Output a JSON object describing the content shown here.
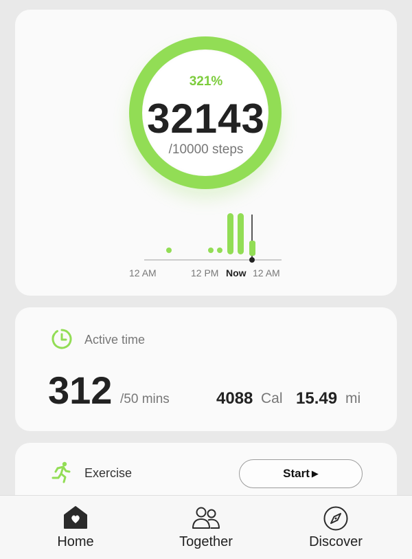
{
  "steps_card": {
    "percent": "321%",
    "steps": "32143",
    "goal": "/10000 steps",
    "chart": {
      "tick_labels": [
        "12 AM",
        "12 PM",
        "Now",
        "12 AM"
      ],
      "accent_color": "#92dd55"
    }
  },
  "active_card": {
    "label": "Active time",
    "minutes": "312",
    "goal": "/50 mins",
    "calories_value": "4088",
    "calories_unit": "Cal",
    "distance_value": "15.49",
    "distance_unit": "mi",
    "icon": "timer-icon"
  },
  "exercise_card": {
    "label": "Exercise",
    "start_label": "Start",
    "start_glyph": "▶",
    "icon": "running-icon"
  },
  "bottom_nav": {
    "items": [
      {
        "label": "Home",
        "icon": "home-heart-icon",
        "selected": true
      },
      {
        "label": "Together",
        "icon": "people-icon",
        "selected": false
      },
      {
        "label": "Discover",
        "icon": "compass-icon",
        "selected": false
      }
    ]
  },
  "colors": {
    "accent": "#92dd55",
    "background": "#e9e9e9",
    "card": "#fafafa"
  }
}
